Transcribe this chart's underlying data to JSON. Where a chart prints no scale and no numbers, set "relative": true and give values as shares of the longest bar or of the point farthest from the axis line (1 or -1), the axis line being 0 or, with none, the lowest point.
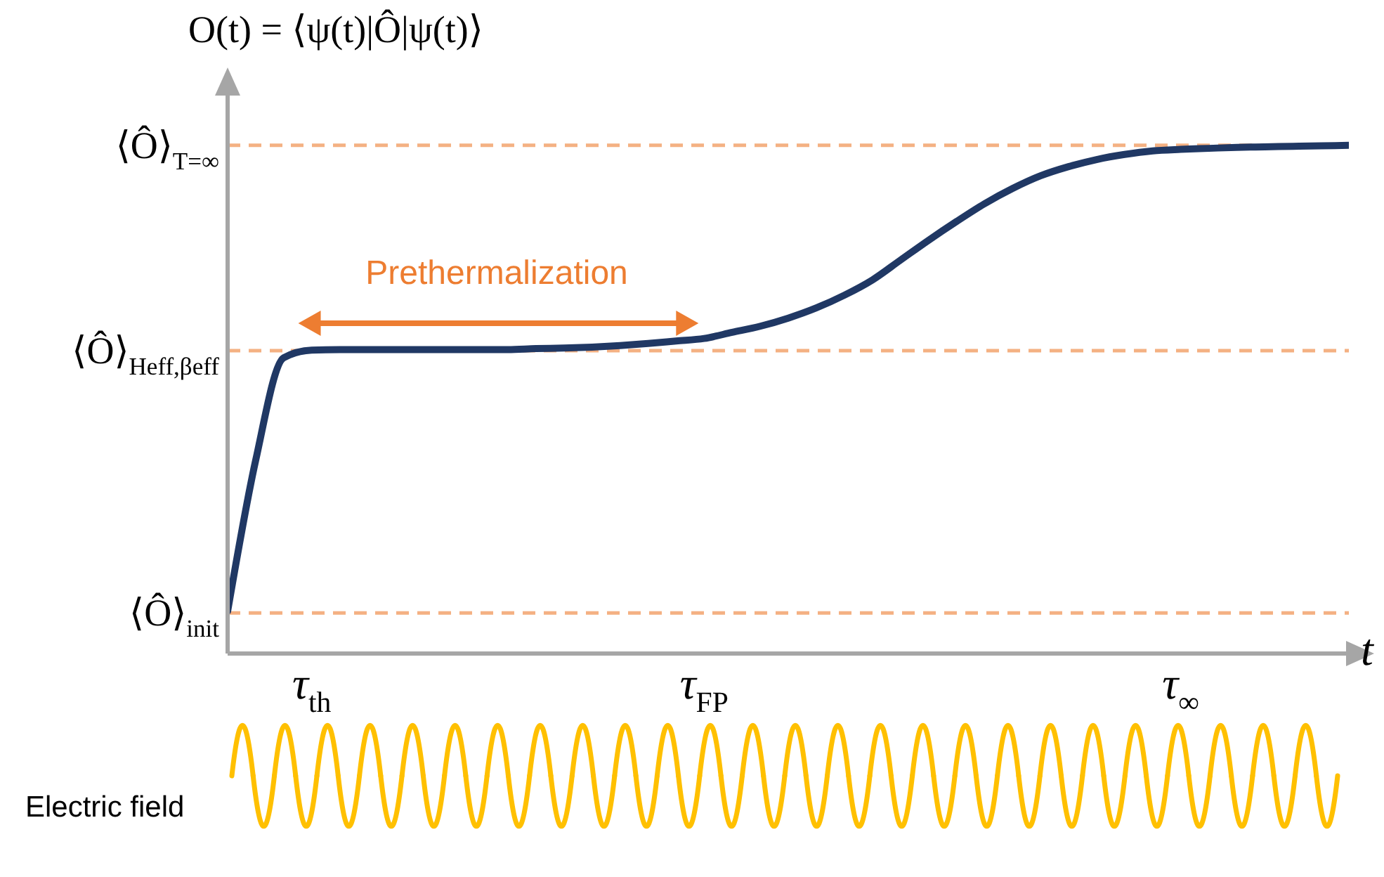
{
  "chart_data": {
    "type": "line",
    "relative": true,
    "ylabel": "O(t) = ⟨ψ(t)|Ô|ψ(t)⟩",
    "xlabel": "t",
    "categories": [
      null,
      null,
      null,
      "τ$_{th}$",
      null,
      null,
      null,
      null,
      null,
      null,
      null,
      null,
      null,
      null,
      null,
      null,
      null,
      "τ$_{FP}$",
      null,
      null,
      null,
      null,
      null,
      null,
      null,
      null,
      null,
      null,
      null,
      null,
      null,
      null,
      null,
      null,
      "τ$_{∞}$",
      null,
      null,
      null,
      null,
      null,
      null
    ],
    "series": [
      {
        "color": "#203864",
        "values": [
          0.083,
          0.38,
          0.582,
          0.597,
          0.598,
          0.598,
          0.598,
          0.598,
          0.598,
          0.598,
          0.598,
          0.6,
          0.601,
          0.603,
          0.606,
          0.61,
          0.615,
          0.62,
          0.632,
          0.644,
          0.66,
          0.68,
          0.705,
          0.735,
          0.774,
          0.813,
          0.85,
          0.885,
          0.915,
          0.94,
          0.958,
          0.972,
          0.982,
          0.989,
          0.992,
          0.994,
          0.996,
          0.997,
          0.998,
          0.999,
          1.0
        ]
      }
    ],
    "ref_lines": [
      {
        "axis": "y",
        "value": 1.0,
        "label": "⟨Ô⟩$_{T=∞}$",
        "color": "#f4b183",
        "line_style": "dashed"
      },
      {
        "axis": "y",
        "value": 0.596,
        "label": "⟨Ô⟩$_{Heff,βeff}$",
        "color": "#f4b183",
        "line_style": "dashed"
      },
      {
        "axis": "y",
        "value": 0.08,
        "label": "⟨Ô⟩$_{init}$",
        "color": "#f4b183",
        "line_style": "dashed"
      }
    ],
    "annotations": [
      "Prethermalization",
      "Electric field"
    ],
    "marker": "none",
    "line_style": "solid",
    "grid": false,
    "legend": false
  }
}
